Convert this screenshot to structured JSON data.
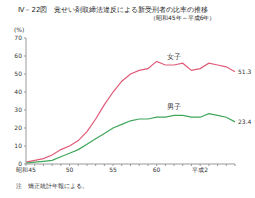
{
  "chart_data": {
    "type": "line",
    "title": "Ⅳ－22図　覚せい剤取締法違反による新受刑者の比率の推移",
    "subtitle": "（昭和45年～平成6年）",
    "y_label": "(%)",
    "note": "注　矯正統計年報による。",
    "categories": [
      "昭和45",
      null,
      null,
      null,
      null,
      "50",
      null,
      null,
      null,
      null,
      "55",
      null,
      null,
      null,
      null,
      "60",
      null,
      null,
      null,
      null,
      "平成2",
      null,
      null,
      null,
      null
    ],
    "series": [
      {
        "name": "女子",
        "color": "#e05a78",
        "values": [
          1,
          2,
          3,
          5,
          8,
          10,
          13,
          18,
          25,
          33,
          40,
          46,
          50,
          52,
          53,
          57,
          55,
          55,
          56,
          52,
          53,
          56,
          55,
          54,
          51.3
        ],
        "value_labels": [
          null,
          null,
          null,
          null,
          null,
          null,
          null,
          null,
          null,
          null,
          null,
          null,
          null,
          null,
          null,
          null,
          null,
          null,
          null,
          null,
          null,
          null,
          null,
          null,
          "51.3"
        ]
      },
      {
        "name": "男子",
        "color": "#3fa65a",
        "values": [
          0.5,
          1,
          1.5,
          2,
          4,
          6,
          8,
          11,
          14,
          17,
          20,
          22,
          24,
          25,
          25,
          26,
          26,
          27,
          27,
          26,
          26,
          28,
          27,
          26,
          23.4
        ],
        "value_labels": [
          null,
          null,
          null,
          null,
          null,
          null,
          null,
          null,
          null,
          null,
          null,
          null,
          null,
          null,
          null,
          null,
          null,
          null,
          null,
          null,
          null,
          null,
          null,
          null,
          "23.4"
        ]
      }
    ],
    "ylim": [
      0,
      70
    ],
    "yticks": [
      0,
      10,
      20,
      30,
      40,
      50,
      60,
      70
    ],
    "grid": false,
    "data_labels": true
  }
}
